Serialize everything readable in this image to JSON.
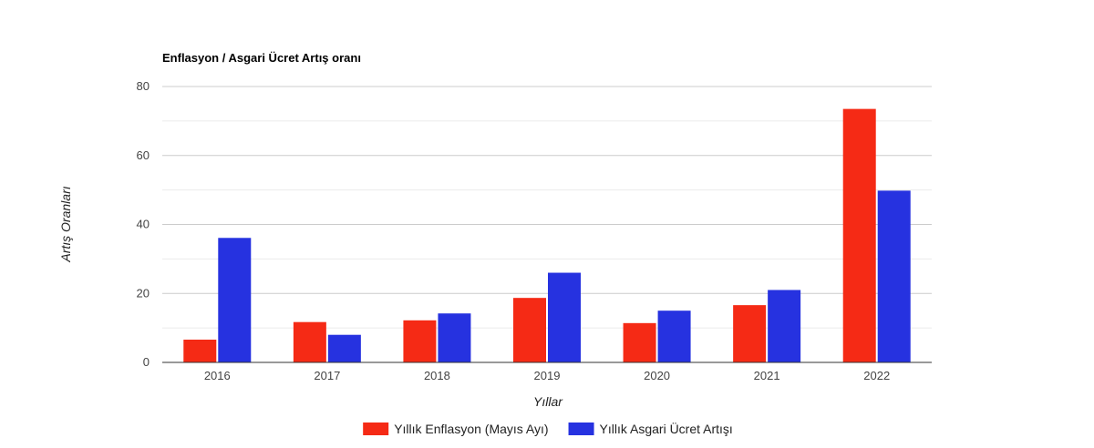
{
  "chart_data": {
    "type": "bar",
    "title": "Enflasyon / Asgari Ücret Artış oranı",
    "xlabel": "Yıllar",
    "ylabel": "Artış Oranları",
    "categories": [
      "2016",
      "2017",
      "2018",
      "2019",
      "2020",
      "2021",
      "2022"
    ],
    "series": [
      {
        "name": "Yıllık Enflasyon (Mayıs Ayı)",
        "color": "#f52a15",
        "values": [
          6.6,
          11.7,
          12.2,
          18.7,
          11.4,
          16.6,
          73.5
        ]
      },
      {
        "name": "Yıllık Asgari Ücret Artışı",
        "color": "#2632e0",
        "values": [
          36.1,
          8.0,
          14.2,
          26.0,
          15.0,
          21.0,
          49.8
        ]
      }
    ],
    "ylim": [
      0,
      80
    ],
    "yticks": [
      0,
      20,
      40,
      60,
      80
    ],
    "grid": true,
    "legend_position": "bottom"
  }
}
